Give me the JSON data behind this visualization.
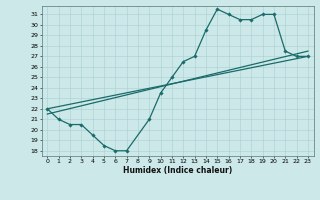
{
  "title": "",
  "xlabel": "Humidex (Indice chaleur)",
  "bg_color": "#cce8e8",
  "line_color": "#1a6b6b",
  "grid_color": "#aacfcf",
  "xlim": [
    -0.5,
    23.5
  ],
  "ylim": [
    17.5,
    31.8
  ],
  "xticks": [
    0,
    1,
    2,
    3,
    4,
    5,
    6,
    7,
    8,
    9,
    10,
    11,
    12,
    13,
    14,
    15,
    16,
    17,
    18,
    19,
    20,
    21,
    22,
    23
  ],
  "yticks": [
    18,
    19,
    20,
    21,
    22,
    23,
    24,
    25,
    26,
    27,
    28,
    29,
    30,
    31
  ],
  "line1_x": [
    0,
    1,
    2,
    3,
    4,
    5,
    6,
    7,
    9,
    10,
    11,
    12,
    13,
    14,
    15,
    16,
    17,
    18,
    19,
    20,
    21,
    22,
    23
  ],
  "line1_y": [
    22,
    21,
    20.5,
    20.5,
    19.5,
    18.5,
    18,
    18,
    21,
    23.5,
    25,
    26.5,
    27,
    29.5,
    31.5,
    31,
    30.5,
    30.5,
    31,
    31,
    27.5,
    27,
    27
  ],
  "line2_x": [
    0,
    23
  ],
  "line2_y": [
    21.5,
    27.5
  ],
  "line3_x": [
    0,
    23
  ],
  "line3_y": [
    22,
    27
  ],
  "marker_style": "D",
  "marker_size": 1.8,
  "line_width": 0.9,
  "tick_fontsize": 4.5,
  "xlabel_fontsize": 5.5
}
